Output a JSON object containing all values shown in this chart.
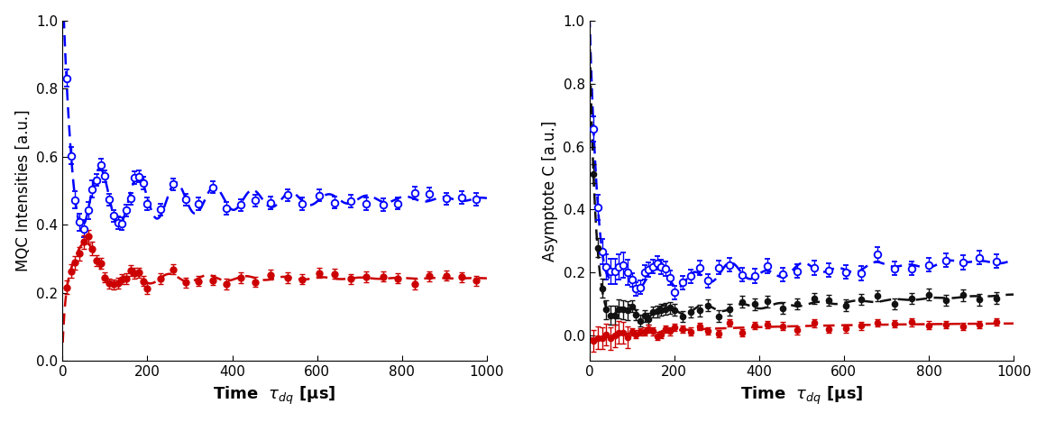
{
  "left_panel": {
    "ylabel": "MQC Intensities [a.u.]",
    "xlim": [
      0,
      1000
    ],
    "ylim": [
      0,
      1.0
    ],
    "yticks": [
      0,
      0.2,
      0.4,
      0.6,
      0.8,
      1.0
    ],
    "xticks": [
      0,
      200,
      400,
      600,
      800,
      1000
    ],
    "blue_color": "#0000FF",
    "red_color": "#CC0000"
  },
  "right_panel": {
    "ylabel": "Asymptote C [a.u.]",
    "xlim": [
      0,
      1000
    ],
    "ylim": [
      -0.08,
      1.0
    ],
    "yticks": [
      0,
      0.2,
      0.4,
      0.6,
      0.8,
      1.0
    ],
    "xticks": [
      0,
      200,
      400,
      600,
      800,
      1000
    ],
    "blue_color": "#0000FF",
    "red_color": "#CC0000",
    "black_color": "#111111"
  },
  "xlabel": "Time  $\\tau_{dq}$ [μs]",
  "figure_background": "#FFFFFF",
  "dpi": 100
}
